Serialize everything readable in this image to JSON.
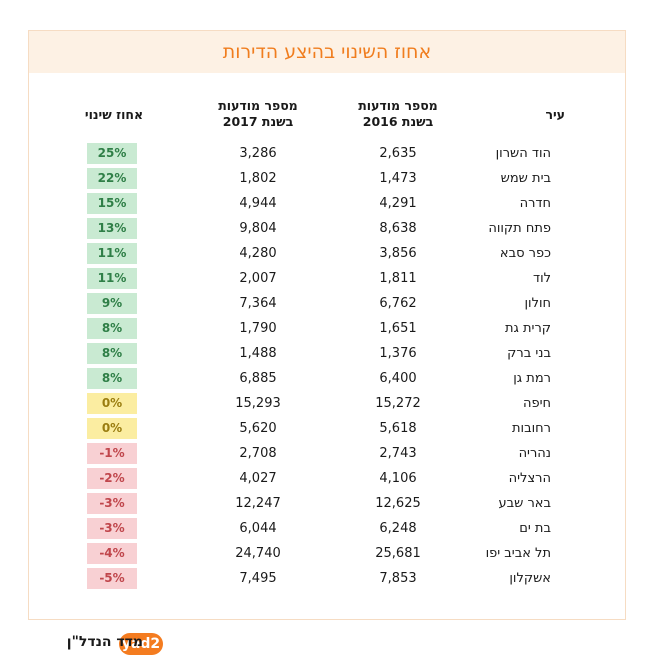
{
  "chart_data": {
    "type": "table",
    "title": "אחוז השינוי בהיצע הדירות",
    "columns": {
      "city": "עיר",
      "y2016": [
        "מספר מודעות",
        "בשנת 2016"
      ],
      "y2017": [
        "מספר מודעות",
        "בשנת 2017"
      ],
      "change": "אחוז שינוי"
    },
    "rows": [
      {
        "city": "הוד השרון",
        "y2016": "2,635",
        "y2017": "3,286",
        "change": "25%",
        "trend": "pos"
      },
      {
        "city": "בית שמש",
        "y2016": "1,473",
        "y2017": "1,802",
        "change": "22%",
        "trend": "pos"
      },
      {
        "city": "חדרה",
        "y2016": "4,291",
        "y2017": "4,944",
        "change": "15%",
        "trend": "pos"
      },
      {
        "city": "פתח תקווה",
        "y2016": "8,638",
        "y2017": "9,804",
        "change": "13%",
        "trend": "pos"
      },
      {
        "city": "כפר סבא",
        "y2016": "3,856",
        "y2017": "4,280",
        "change": "11%",
        "trend": "pos"
      },
      {
        "city": "לוד",
        "y2016": "1,811",
        "y2017": "2,007",
        "change": "11%",
        "trend": "pos"
      },
      {
        "city": "חולון",
        "y2016": "6,762",
        "y2017": "7,364",
        "change": "9%",
        "trend": "pos"
      },
      {
        "city": "קרית גת",
        "y2016": "1,651",
        "y2017": "1,790",
        "change": "8%",
        "trend": "pos"
      },
      {
        "city": "בני ברק",
        "y2016": "1,376",
        "y2017": "1,488",
        "change": "8%",
        "trend": "pos"
      },
      {
        "city": "רמת גן",
        "y2016": "6,400",
        "y2017": "6,885",
        "change": "8%",
        "trend": "pos"
      },
      {
        "city": "חיפה",
        "y2016": "15,272",
        "y2017": "15,293",
        "change": "0%",
        "trend": "zero"
      },
      {
        "city": "רחובות",
        "y2016": "5,618",
        "y2017": "5,620",
        "change": "0%",
        "trend": "zero"
      },
      {
        "city": "נהריה",
        "y2016": "2,743",
        "y2017": "2,708",
        "change": "-1%",
        "trend": "neg"
      },
      {
        "city": "הרצליה",
        "y2016": "4,106",
        "y2017": "4,027",
        "change": "-2%",
        "trend": "neg"
      },
      {
        "city": "באר שבע",
        "y2016": "12,625",
        "y2017": "12,247",
        "change": "-3%",
        "trend": "neg"
      },
      {
        "city": "בת ים",
        "y2016": "6,248",
        "y2017": "6,044",
        "change": "-3%",
        "trend": "neg"
      },
      {
        "city": "תל אביב יפו",
        "y2016": "25,681",
        "y2017": "24,740",
        "change": "-4%",
        "trend": "neg"
      },
      {
        "city": "אשקלון",
        "y2016": "7,853",
        "y2017": "7,495",
        "change": "-5%",
        "trend": "neg"
      }
    ],
    "colors": {
      "pos": "#c9ead2",
      "zero": "#fbeda1",
      "neg": "#f8d0d3",
      "accent": "#f07d1e"
    }
  },
  "footer": {
    "source_label": "מדד הנדל\"ן",
    "logo_text": "yad2"
  }
}
